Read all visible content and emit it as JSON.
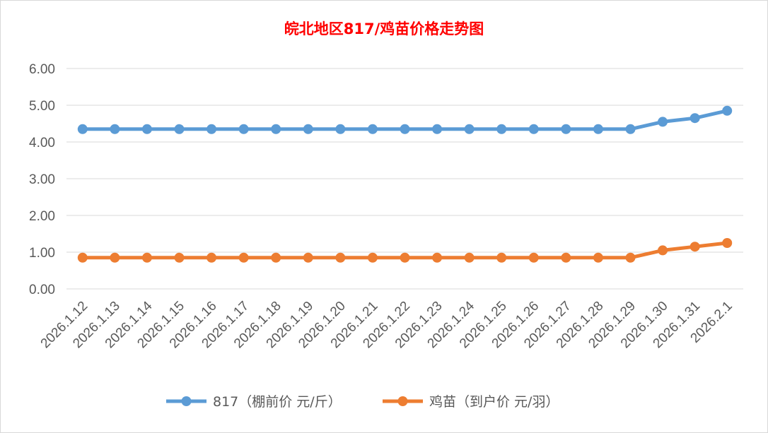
{
  "chart_data": {
    "type": "line",
    "title": "皖北地区817/鸡苗价格走势图",
    "categories": [
      "2026.1.12",
      "2026.1.13",
      "2026.1.14",
      "2026.1.15",
      "2026.1.16",
      "2026.1.17",
      "2026.1.18",
      "2026.1.19",
      "2026.1.20",
      "2026.1.21",
      "2026.1.22",
      "2026.1.23",
      "2026.1.24",
      "2026.1.25",
      "2026.1.26",
      "2026.1.27",
      "2026.1.28",
      "2026.1.29",
      "2026.1.30",
      "2026.1.31",
      "2026.2.1"
    ],
    "series": [
      {
        "name": "817（棚前价 元/斤）",
        "color": "#5b9bd5",
        "values": [
          4.35,
          4.35,
          4.35,
          4.35,
          4.35,
          4.35,
          4.35,
          4.35,
          4.35,
          4.35,
          4.35,
          4.35,
          4.35,
          4.35,
          4.35,
          4.35,
          4.35,
          4.35,
          4.55,
          4.65,
          4.85
        ]
      },
      {
        "name": "鸡苗（到户价 元/羽）",
        "color": "#ed7d31",
        "values": [
          0.85,
          0.85,
          0.85,
          0.85,
          0.85,
          0.85,
          0.85,
          0.85,
          0.85,
          0.85,
          0.85,
          0.85,
          0.85,
          0.85,
          0.85,
          0.85,
          0.85,
          0.85,
          1.05,
          1.15,
          1.25
        ]
      }
    ],
    "ylim": [
      0,
      6
    ],
    "yticks": [
      "0.00",
      "1.00",
      "2.00",
      "3.00",
      "4.00",
      "5.00",
      "6.00"
    ],
    "grid": true,
    "legend_position": "bottom"
  }
}
